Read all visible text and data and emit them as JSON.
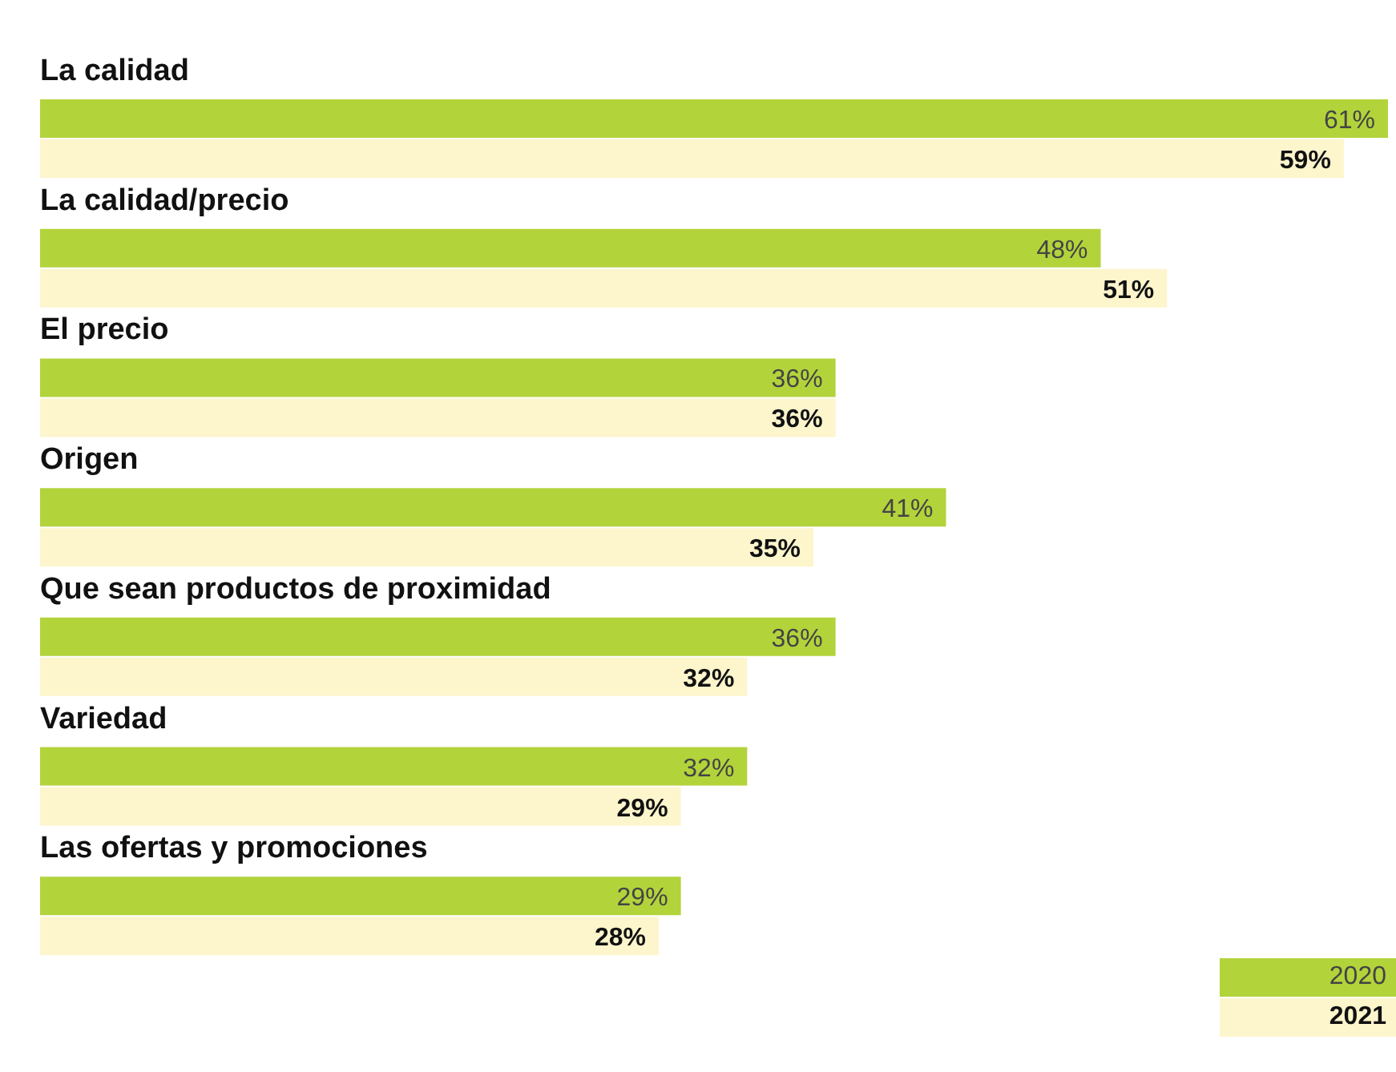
{
  "chart_data": {
    "type": "bar",
    "orientation": "horizontal",
    "categories": [
      "La calidad",
      "La calidad/precio",
      "El precio",
      "Origen",
      "Que sean productos de proximidad",
      "Variedad",
      "Las ofertas y promociones"
    ],
    "series": [
      {
        "name": "2020",
        "color": "#b3d33b",
        "values": [
          61,
          48,
          36,
          41,
          36,
          32,
          29
        ],
        "value_labels": [
          "61%",
          "48%",
          "36%",
          "41%",
          "36%",
          "32%",
          "29%"
        ]
      },
      {
        "name": "2021",
        "color": "#fdf5cc",
        "values": [
          59,
          51,
          36,
          35,
          32,
          29,
          28
        ],
        "value_labels": [
          "59%",
          "51%",
          "36%",
          "35%",
          "32%",
          "29%",
          "28%"
        ]
      }
    ],
    "legend": "bottom right",
    "grid": false
  }
}
